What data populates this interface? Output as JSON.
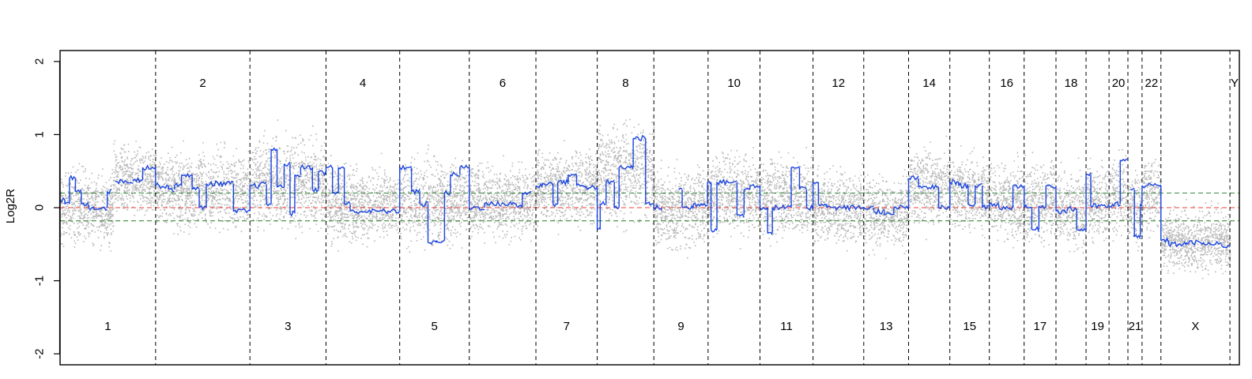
{
  "chart_data": {
    "type": "scatter",
    "title": "",
    "xlabel": "",
    "ylabel": "Log2R",
    "ylim": [
      -2.15,
      2.15
    ],
    "y_ticks": [
      2,
      1,
      0,
      -1,
      -2
    ],
    "y_tick_labels": [
      "2",
      "1",
      "0",
      "-1",
      "-2"
    ],
    "grid": false,
    "reference_lines": [
      {
        "name": "zero",
        "y": 0,
        "color": "#e8403a"
      },
      {
        "name": "upper-threshold",
        "y": 0.2,
        "color": "#3a8a3a"
      },
      {
        "name": "lower-threshold",
        "y": -0.18,
        "color": "#3a8a3a"
      }
    ],
    "colors": {
      "points": "#b8b8b8",
      "segments": "#1a44e0",
      "boundaries": "#000000"
    },
    "chromosomes": [
      {
        "label": "1",
        "start": 0,
        "end": 0.081,
        "label_pos": "bottom"
      },
      {
        "label": "2",
        "start": 0.081,
        "end": 0.161,
        "label_pos": "top"
      },
      {
        "label": "3",
        "start": 0.161,
        "end": 0.2255,
        "label_pos": "bottom"
      },
      {
        "label": "4",
        "start": 0.2255,
        "end": 0.288,
        "label_pos": "top"
      },
      {
        "label": "5",
        "start": 0.288,
        "end": 0.347,
        "label_pos": "bottom"
      },
      {
        "label": "6",
        "start": 0.347,
        "end": 0.4035,
        "label_pos": "top"
      },
      {
        "label": "7",
        "start": 0.4035,
        "end": 0.4555,
        "label_pos": "bottom"
      },
      {
        "label": "8",
        "start": 0.4555,
        "end": 0.5035,
        "label_pos": "top"
      },
      {
        "label": "9",
        "start": 0.5035,
        "end": 0.5495,
        "label_pos": "bottom"
      },
      {
        "label": "10",
        "start": 0.5495,
        "end": 0.5935,
        "label_pos": "top"
      },
      {
        "label": "11",
        "start": 0.5935,
        "end": 0.6385,
        "label_pos": "bottom"
      },
      {
        "label": "12",
        "start": 0.6385,
        "end": 0.6815,
        "label_pos": "top"
      },
      {
        "label": "13",
        "start": 0.6815,
        "end": 0.7195,
        "label_pos": "bottom"
      },
      {
        "label": "14",
        "start": 0.7195,
        "end": 0.7545,
        "label_pos": "top"
      },
      {
        "label": "15",
        "start": 0.7545,
        "end": 0.788,
        "label_pos": "bottom"
      },
      {
        "label": "16",
        "start": 0.788,
        "end": 0.8175,
        "label_pos": "top"
      },
      {
        "label": "17",
        "start": 0.8175,
        "end": 0.8445,
        "label_pos": "bottom"
      },
      {
        "label": "18",
        "start": 0.8445,
        "end": 0.87,
        "label_pos": "top"
      },
      {
        "label": "19",
        "start": 0.87,
        "end": 0.8895,
        "label_pos": "bottom"
      },
      {
        "label": "20",
        "start": 0.8895,
        "end": 0.9055,
        "label_pos": "top"
      },
      {
        "label": "21",
        "start": 0.9055,
        "end": 0.9175,
        "label_pos": "bottom"
      },
      {
        "label": "22",
        "start": 0.9175,
        "end": 0.9335,
        "label_pos": "top"
      },
      {
        "label": "X",
        "start": 0.9335,
        "end": 0.992,
        "label_pos": "bottom"
      },
      {
        "label": "Y",
        "start": 0.992,
        "end": 1.0,
        "label_pos": "top"
      }
    ],
    "segments": [
      [
        0.0,
        0.004,
        0.1
      ],
      [
        0.004,
        0.008,
        0.05
      ],
      [
        0.008,
        0.013,
        0.4
      ],
      [
        0.013,
        0.018,
        0.22
      ],
      [
        0.018,
        0.024,
        0.05
      ],
      [
        0.024,
        0.04,
        0.0
      ],
      [
        0.04,
        0.043,
        0.22
      ],
      [
        0.047,
        0.062,
        0.36
      ],
      [
        0.062,
        0.07,
        0.38
      ],
      [
        0.07,
        0.081,
        0.55
      ],
      [
        0.081,
        0.092,
        0.3
      ],
      [
        0.092,
        0.097,
        0.25
      ],
      [
        0.097,
        0.103,
        0.3
      ],
      [
        0.103,
        0.112,
        0.45
      ],
      [
        0.112,
        0.118,
        0.25
      ],
      [
        0.118,
        0.124,
        0.0
      ],
      [
        0.124,
        0.147,
        0.33
      ],
      [
        0.147,
        0.161,
        -0.05
      ],
      [
        0.161,
        0.169,
        0.3
      ],
      [
        0.169,
        0.175,
        0.32
      ],
      [
        0.175,
        0.179,
        0.05
      ],
      [
        0.179,
        0.184,
        0.8
      ],
      [
        0.184,
        0.19,
        0.28
      ],
      [
        0.19,
        0.195,
        0.6
      ],
      [
        0.195,
        0.199,
        -0.08
      ],
      [
        0.199,
        0.204,
        0.45
      ],
      [
        0.204,
        0.214,
        0.55
      ],
      [
        0.214,
        0.219,
        0.25
      ],
      [
        0.219,
        0.2255,
        0.48
      ],
      [
        0.2255,
        0.231,
        0.55
      ],
      [
        0.231,
        0.236,
        0.2
      ],
      [
        0.236,
        0.241,
        0.55
      ],
      [
        0.241,
        0.246,
        0.05
      ],
      [
        0.246,
        0.288,
        -0.05
      ],
      [
        0.288,
        0.298,
        0.55
      ],
      [
        0.298,
        0.305,
        0.22
      ],
      [
        0.305,
        0.312,
        0.05
      ],
      [
        0.312,
        0.319,
        -0.48
      ],
      [
        0.319,
        0.326,
        -0.45
      ],
      [
        0.326,
        0.331,
        0.2
      ],
      [
        0.331,
        0.339,
        0.45
      ],
      [
        0.339,
        0.347,
        0.55
      ],
      [
        0.347,
        0.36,
        0.0
      ],
      [
        0.36,
        0.374,
        0.05
      ],
      [
        0.374,
        0.387,
        0.05
      ],
      [
        0.387,
        0.392,
        0.02
      ],
      [
        0.392,
        0.3995,
        0.2
      ],
      [
        0.4035,
        0.409,
        0.3
      ],
      [
        0.409,
        0.418,
        0.33
      ],
      [
        0.418,
        0.422,
        0.05
      ],
      [
        0.422,
        0.431,
        0.35
      ],
      [
        0.431,
        0.438,
        0.45
      ],
      [
        0.438,
        0.446,
        0.3
      ],
      [
        0.446,
        0.4555,
        0.28
      ],
      [
        0.4555,
        0.458,
        -0.3
      ],
      [
        0.458,
        0.463,
        0.05
      ],
      [
        0.463,
        0.47,
        0.35
      ],
      [
        0.47,
        0.474,
        0.0
      ],
      [
        0.474,
        0.486,
        0.55
      ],
      [
        0.486,
        0.4965,
        0.95
      ],
      [
        0.4965,
        0.5035,
        0.05
      ],
      [
        0.5035,
        0.51,
        0.0
      ],
      [
        0.51,
        0.5095,
        -0.02
      ],
      [
        0.5245,
        0.5275,
        0.25
      ],
      [
        0.5275,
        0.537,
        0.0
      ],
      [
        0.537,
        0.549,
        0.05
      ],
      [
        0.549,
        0.552,
        0.35
      ],
      [
        0.552,
        0.557,
        -0.3
      ],
      [
        0.557,
        0.571,
        0.35
      ],
      [
        0.571,
        0.574,
        0.35
      ],
      [
        0.574,
        0.58,
        -0.1
      ],
      [
        0.58,
        0.585,
        0.25
      ],
      [
        0.585,
        0.5935,
        0.3
      ],
      [
        0.5935,
        0.6,
        0.0
      ],
      [
        0.6,
        0.604,
        -0.35
      ],
      [
        0.604,
        0.612,
        0.0
      ],
      [
        0.612,
        0.62,
        0.0
      ],
      [
        0.62,
        0.627,
        0.55
      ],
      [
        0.627,
        0.633,
        0.25
      ],
      [
        0.633,
        0.6385,
        0.0
      ],
      [
        0.6385,
        0.643,
        0.35
      ],
      [
        0.643,
        0.65,
        0.05
      ],
      [
        0.65,
        0.6815,
        0.0
      ],
      [
        0.6815,
        0.69,
        0.0
      ],
      [
        0.69,
        0.699,
        -0.05
      ],
      [
        0.699,
        0.707,
        -0.1
      ],
      [
        0.707,
        0.7195,
        0.0
      ],
      [
        0.7195,
        0.728,
        0.4
      ],
      [
        0.728,
        0.745,
        0.28
      ],
      [
        0.745,
        0.7545,
        0.0
      ],
      [
        0.7545,
        0.762,
        0.35
      ],
      [
        0.762,
        0.77,
        0.3
      ],
      [
        0.77,
        0.776,
        0.05
      ],
      [
        0.776,
        0.782,
        0.3
      ],
      [
        0.782,
        0.788,
        0.0
      ],
      [
        0.788,
        0.796,
        0.05
      ],
      [
        0.796,
        0.808,
        0.0
      ],
      [
        0.808,
        0.8175,
        0.3
      ],
      [
        0.8175,
        0.824,
        0.0
      ],
      [
        0.824,
        0.83,
        -0.3
      ],
      [
        0.83,
        0.836,
        0.02
      ],
      [
        0.836,
        0.8445,
        0.3
      ],
      [
        0.8445,
        0.854,
        -0.05
      ],
      [
        0.854,
        0.862,
        -0.02
      ],
      [
        0.862,
        0.87,
        -0.3
      ],
      [
        0.87,
        0.874,
        0.45
      ],
      [
        0.874,
        0.8895,
        0.02
      ],
      [
        0.8895,
        0.894,
        0.02
      ],
      [
        0.894,
        0.899,
        0.05
      ],
      [
        0.899,
        0.9055,
        0.65
      ],
      [
        0.9075,
        0.911,
        0.25
      ],
      [
        0.911,
        0.916,
        -0.4
      ],
      [
        0.916,
        0.9175,
        0.05
      ],
      [
        0.9175,
        0.922,
        0.3
      ],
      [
        0.922,
        0.9335,
        0.3
      ],
      [
        0.9335,
        0.94,
        -0.45
      ],
      [
        0.94,
        0.955,
        -0.5
      ],
      [
        0.955,
        0.97,
        -0.48
      ],
      [
        0.97,
        0.985,
        -0.5
      ],
      [
        0.985,
        0.992,
        -0.52
      ]
    ],
    "scatter_bands": [
      [
        0.0,
        0.045,
        0.0,
        0.6
      ],
      [
        0.045,
        0.081,
        0.4,
        0.55
      ],
      [
        0.081,
        0.161,
        0.25,
        0.6
      ],
      [
        0.161,
        0.2255,
        0.35,
        0.75
      ],
      [
        0.2255,
        0.288,
        0.05,
        0.6
      ],
      [
        0.288,
        0.347,
        0.1,
        0.7
      ],
      [
        0.347,
        0.4035,
        0.1,
        0.6
      ],
      [
        0.4035,
        0.4555,
        0.3,
        0.6
      ],
      [
        0.4555,
        0.5035,
        0.5,
        0.8
      ],
      [
        0.5035,
        0.549,
        0.0,
        0.65
      ],
      [
        0.549,
        0.5935,
        0.2,
        0.65
      ],
      [
        0.5935,
        0.6385,
        0.15,
        0.65
      ],
      [
        0.6385,
        0.6815,
        0.0,
        0.55
      ],
      [
        0.6815,
        0.7195,
        -0.05,
        0.6
      ],
      [
        0.7195,
        0.7545,
        0.3,
        0.6
      ],
      [
        0.7545,
        0.788,
        0.2,
        0.6
      ],
      [
        0.788,
        0.8175,
        0.1,
        0.6
      ],
      [
        0.8175,
        0.8445,
        0.1,
        0.65
      ],
      [
        0.8445,
        0.87,
        0.0,
        0.65
      ],
      [
        0.87,
        0.8895,
        0.1,
        0.6
      ],
      [
        0.8895,
        0.9055,
        0.15,
        0.6
      ],
      [
        0.9055,
        0.9175,
        0.0,
        0.6
      ],
      [
        0.9175,
        0.9335,
        0.2,
        0.6
      ],
      [
        0.9335,
        0.992,
        -0.45,
        0.5
      ]
    ]
  }
}
